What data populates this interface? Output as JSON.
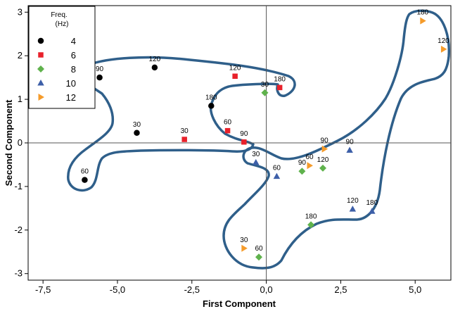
{
  "chart_data": {
    "type": "scatter",
    "title": "",
    "xlabel": "First Component",
    "ylabel": "Second Component",
    "xlim": [
      -8.0,
      6.2
    ],
    "ylim": [
      -3.15,
      3.15
    ],
    "xticks": [
      -7.5,
      -5.0,
      -2.5,
      0.0,
      2.5,
      5.0
    ],
    "xtick_labels": [
      "-7,5",
      "-5,0",
      "-2,5",
      "0,0",
      "2,5",
      "5,0"
    ],
    "yticks": [
      -3,
      -2,
      -1,
      0,
      1,
      2,
      3
    ],
    "ytick_labels": [
      "-3",
      "-2",
      "-1",
      "0",
      "1",
      "2",
      "3"
    ],
    "reference_lines": {
      "x": 0,
      "y": 0
    },
    "legend": {
      "title_line1": "Freq.",
      "title_line2": "(Hz)",
      "placement": "top-left"
    },
    "series": [
      {
        "name": "4",
        "marker": "circle",
        "color": "#000000",
        "points": [
          {
            "x": -5.6,
            "y": 1.5,
            "label": "90"
          },
          {
            "x": -3.75,
            "y": 1.73,
            "label": "120"
          },
          {
            "x": -1.85,
            "y": 0.85,
            "label": "180"
          },
          {
            "x": -4.35,
            "y": 0.23,
            "label": "30"
          },
          {
            "x": -6.1,
            "y": -0.85,
            "label": "60"
          }
        ]
      },
      {
        "name": "6",
        "marker": "square",
        "color": "#e8212b",
        "points": [
          {
            "x": -1.05,
            "y": 1.53,
            "label": "120"
          },
          {
            "x": 0.45,
            "y": 1.27,
            "label": "180"
          },
          {
            "x": -1.3,
            "y": 0.28,
            "label": "60"
          },
          {
            "x": -2.75,
            "y": 0.08,
            "label": "30"
          },
          {
            "x": -0.75,
            "y": 0.02,
            "label": "90"
          }
        ]
      },
      {
        "name": "8",
        "marker": "diamond",
        "color": "#5fb24c",
        "points": [
          {
            "x": -0.05,
            "y": 1.15,
            "label": "30"
          },
          {
            "x": 1.2,
            "y": -0.65,
            "label": "90"
          },
          {
            "x": 1.9,
            "y": -0.58,
            "label": "120"
          },
          {
            "x": 1.5,
            "y": -1.88,
            "label": "180"
          },
          {
            "x": -0.25,
            "y": -2.62,
            "label": "60"
          }
        ]
      },
      {
        "name": "10",
        "marker": "triangle",
        "color": "#3d5fa8",
        "points": [
          {
            "x": -0.35,
            "y": -0.45,
            "label": "30"
          },
          {
            "x": 0.35,
            "y": -0.77,
            "label": "60"
          },
          {
            "x": 2.8,
            "y": -0.17,
            "label": "90"
          },
          {
            "x": 2.9,
            "y": -1.52,
            "label": "120"
          },
          {
            "x": 3.55,
            "y": -1.57,
            "label": "180"
          }
        ]
      },
      {
        "name": "12",
        "marker": "triangle-right",
        "color": "#f59b2a",
        "points": [
          {
            "x": 5.25,
            "y": 2.8,
            "label": "180"
          },
          {
            "x": 5.95,
            "y": 2.15,
            "label": "120"
          },
          {
            "x": 1.95,
            "y": -0.14,
            "label": "90"
          },
          {
            "x": 1.45,
            "y": -0.52,
            "label": "60"
          },
          {
            "x": -0.75,
            "y": -2.42,
            "label": "30"
          }
        ]
      }
    ],
    "grouping_outline_color": "#2f5f8a"
  }
}
